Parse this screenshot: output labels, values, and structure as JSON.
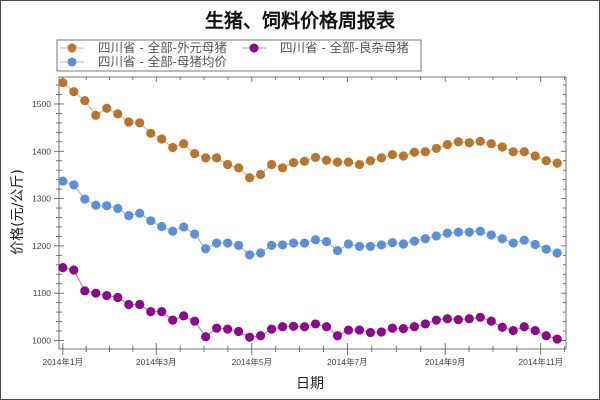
{
  "chart_data": {
    "type": "line",
    "title": "生猪、饲料价格周报表",
    "xlabel": "日期",
    "ylabel": "价格(元/公斤)",
    "ylim": [
      982,
      1557
    ],
    "y_ticks": [
      1000,
      1100,
      1200,
      1300,
      1400,
      1500
    ],
    "y_minor_step": 20,
    "x_ticks": [
      {
        "label": "2014年1月",
        "week": 0
      },
      {
        "label": "2014年3月",
        "week": 8.5
      },
      {
        "label": "2014年5月",
        "week": 17.2
      },
      {
        "label": "2014年7月",
        "week": 25.9
      },
      {
        "label": "2014年9月",
        "week": 34.8
      },
      {
        "label": "2014年11月",
        "week": 43.5
      }
    ],
    "x_range_weeks": [
      -0.35,
      45.8
    ],
    "grid": false,
    "legend_position": "top-left",
    "series": [
      {
        "name": "四川省 - 全部-外元母猪",
        "color": "#b8752e",
        "line_color": "#e2b48a",
        "values": [
          1545,
          1526,
          1507,
          1476,
          1491,
          1479,
          1462,
          1460,
          1438,
          1426,
          1408,
          1416,
          1395,
          1386,
          1386,
          1372,
          1365,
          1344,
          1351,
          1372,
          1365,
          1376,
          1379,
          1387,
          1381,
          1377,
          1377,
          1372,
          1380,
          1386,
          1393,
          1390,
          1398,
          1399,
          1406,
          1414,
          1420,
          1418,
          1421,
          1416,
          1409,
          1399,
          1399,
          1390,
          1380,
          1375
        ]
      },
      {
        "name": "四川省 - 全部-良杂母猪",
        "color": "#8b0a8b",
        "line_color": "#c77cc7",
        "values": [
          1154,
          1149,
          1105,
          1100,
          1095,
          1091,
          1076,
          1076,
          1061,
          1061,
          1043,
          1052,
          1041,
          1008,
          1026,
          1024,
          1019,
          1007,
          1010,
          1024,
          1029,
          1030,
          1029,
          1035,
          1029,
          1010,
          1022,
          1022,
          1017,
          1018,
          1026,
          1025,
          1029,
          1035,
          1043,
          1046,
          1044,
          1046,
          1049,
          1041,
          1028,
          1021,
          1029,
          1021,
          1010,
          1003
        ]
      },
      {
        "name": "四川省 - 全部-母猪均价",
        "color": "#5b8fd6",
        "line_color": "#9dbde8",
        "values": [
          1337,
          1329,
          1299,
          1286,
          1285,
          1279,
          1264,
          1269,
          1253,
          1241,
          1231,
          1240,
          1225,
          1194,
          1206,
          1206,
          1201,
          1181,
          1185,
          1201,
          1202,
          1206,
          1206,
          1213,
          1209,
          1190,
          1204,
          1199,
          1199,
          1202,
          1207,
          1204,
          1210,
          1215,
          1221,
          1227,
          1229,
          1229,
          1231,
          1223,
          1215,
          1206,
          1212,
          1203,
          1193,
          1185
        ]
      }
    ],
    "legend_order": [
      0,
      1,
      2
    ]
  }
}
